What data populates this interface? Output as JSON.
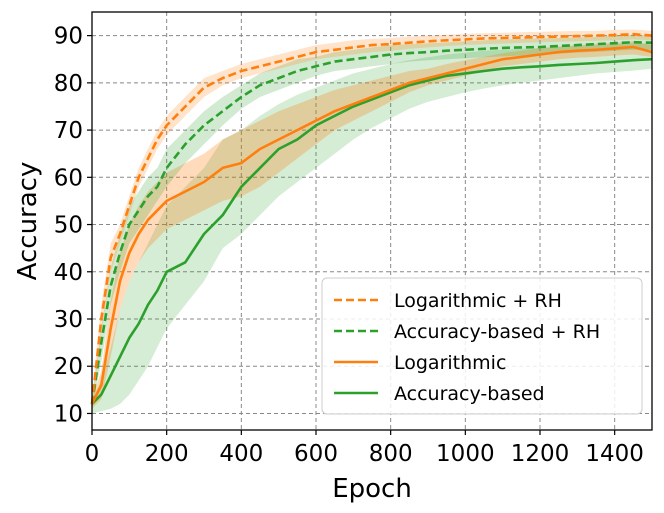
{
  "chart_data": {
    "type": "line",
    "title": "",
    "xlabel": "Epoch",
    "ylabel": "Accuracy",
    "xlim": [
      0,
      1500
    ],
    "ylim": [
      6.5,
      95
    ],
    "xticks": [
      0,
      200,
      400,
      600,
      800,
      1000,
      1200,
      1400
    ],
    "yticks": [
      10,
      20,
      30,
      40,
      50,
      60,
      70,
      80,
      90
    ],
    "grid": true,
    "grid_style": "dashed",
    "legend_position": "lower-right",
    "series": [
      {
        "name": "Logarithmic + RH",
        "color": "#ff7f0e",
        "linestyle": "dashed",
        "x": [
          0,
          25,
          50,
          75,
          100,
          125,
          150,
          175,
          200,
          250,
          300,
          350,
          400,
          450,
          500,
          550,
          600,
          650,
          700,
          750,
          800,
          850,
          900,
          950,
          1000,
          1050,
          1100,
          1150,
          1200,
          1250,
          1300,
          1350,
          1400,
          1450,
          1500
        ],
        "y": [
          12,
          30,
          43,
          48,
          54,
          60,
          64,
          68,
          71,
          75,
          79,
          81,
          82.5,
          83.5,
          84.5,
          85.5,
          86.5,
          87,
          87.5,
          88,
          88.2,
          88.5,
          88.8,
          89,
          89.2,
          89.4,
          89.5,
          89.6,
          89.7,
          89.8,
          89.9,
          90,
          90.1,
          90.3,
          90
        ],
        "band_lower": [
          11,
          27,
          40,
          46,
          52,
          58,
          62,
          66,
          69,
          73,
          77,
          79.5,
          81,
          82,
          83,
          84,
          85,
          85.5,
          86,
          86.5,
          86.8,
          87.2,
          87.5,
          87.8,
          88,
          88.2,
          88.3,
          88.5,
          88.6,
          88.7,
          88.8,
          88.9,
          89,
          89.2,
          89
        ],
        "band_upper": [
          13,
          33,
          46,
          50,
          56,
          62,
          66,
          70,
          73,
          77,
          81,
          82.5,
          84,
          85,
          86,
          87,
          88,
          88.5,
          89,
          89.3,
          89.5,
          89.8,
          90,
          90.2,
          90.4,
          90.5,
          90.6,
          90.7,
          90.8,
          90.9,
          91,
          91,
          91.2,
          91.3,
          91
        ]
      },
      {
        "name": "Accuracy-based + RH",
        "color": "#2ca02c",
        "linestyle": "dashed",
        "x": [
          0,
          25,
          50,
          75,
          100,
          125,
          150,
          175,
          200,
          250,
          300,
          350,
          400,
          450,
          500,
          550,
          600,
          650,
          700,
          750,
          800,
          850,
          900,
          950,
          1000,
          1050,
          1100,
          1150,
          1200,
          1250,
          1300,
          1350,
          1400,
          1450,
          1500
        ],
        "y": [
          12,
          25,
          37,
          44,
          50,
          53,
          56,
          58,
          62,
          67,
          71,
          74,
          77,
          79.5,
          81,
          82.5,
          83.5,
          84.5,
          85,
          85.5,
          86,
          86.3,
          86.5,
          86.8,
          87,
          87.2,
          87.4,
          87.5,
          87.6,
          87.8,
          88,
          88.2,
          88.4,
          88.6,
          88.5
        ],
        "band_lower": [
          11,
          21,
          33,
          40,
          46,
          49,
          52,
          55,
          58,
          63,
          67,
          71,
          74.5,
          77,
          78.5,
          80,
          81.5,
          82.5,
          83,
          83.5,
          84,
          84.5,
          84.8,
          85,
          85.2,
          85.4,
          85.6,
          85.8,
          86,
          86.2,
          86.4,
          86.6,
          86.8,
          87,
          87
        ],
        "band_upper": [
          13,
          28,
          41,
          48,
          54,
          57,
          60,
          62,
          66,
          70,
          74,
          77,
          79.5,
          82,
          83.5,
          85,
          85.5,
          86.5,
          87,
          87.5,
          88,
          88.2,
          88.4,
          88.6,
          88.8,
          89,
          89.2,
          89.3,
          89.4,
          89.5,
          89.6,
          89.8,
          90,
          90.2,
          90
        ]
      },
      {
        "name": "Logarithmic",
        "color": "#ff7f0e",
        "linestyle": "solid",
        "x": [
          0,
          25,
          50,
          75,
          100,
          125,
          150,
          175,
          200,
          250,
          300,
          350,
          400,
          450,
          500,
          550,
          600,
          650,
          700,
          750,
          800,
          850,
          900,
          950,
          1000,
          1050,
          1100,
          1150,
          1200,
          1250,
          1300,
          1350,
          1400,
          1450,
          1500
        ],
        "y": [
          12,
          16,
          28,
          38,
          44,
          48,
          51,
          53,
          55,
          57,
          59,
          62,
          63,
          66,
          68,
          70,
          72,
          74,
          75.5,
          77,
          78.5,
          80,
          81,
          82,
          83,
          84,
          85,
          85.5,
          86,
          86.5,
          86.8,
          87,
          87.3,
          87.6,
          86.5
        ],
        "band_lower": [
          11,
          13,
          22,
          32,
          38,
          42,
          45,
          47,
          49,
          51,
          53,
          55,
          56,
          58,
          61,
          64,
          67,
          70,
          72,
          74,
          76,
          78,
          79.5,
          80.5,
          81.5,
          82.5,
          83.5,
          84,
          84.5,
          85,
          85.3,
          85.5,
          85.8,
          86,
          85.5
        ],
        "band_upper": [
          13,
          19,
          34,
          44,
          50,
          54,
          57,
          59,
          61,
          63,
          65,
          68,
          70,
          72,
          74,
          75.5,
          77,
          78.5,
          79.5,
          80.5,
          81.5,
          82.5,
          83,
          84,
          84.8,
          85.5,
          86.3,
          86.8,
          87.3,
          87.7,
          88,
          88.3,
          88.5,
          88.8,
          88
        ]
      },
      {
        "name": "Accuracy-based",
        "color": "#2ca02c",
        "linestyle": "solid",
        "x": [
          0,
          25,
          50,
          75,
          100,
          125,
          150,
          175,
          200,
          250,
          300,
          350,
          400,
          450,
          500,
          550,
          600,
          650,
          700,
          750,
          800,
          850,
          900,
          950,
          1000,
          1050,
          1100,
          1150,
          1200,
          1250,
          1300,
          1350,
          1400,
          1450,
          1500
        ],
        "y": [
          12,
          14,
          18,
          22,
          26,
          29,
          33,
          36,
          40,
          42,
          48,
          52,
          58,
          62,
          66,
          68,
          71,
          73,
          75,
          76.5,
          78,
          79.5,
          80.5,
          81.5,
          82,
          82.5,
          83,
          83.3,
          83.5,
          83.8,
          84,
          84.2,
          84.5,
          84.8,
          85
        ],
        "band_lower": [
          10,
          10.5,
          11,
          12,
          14,
          17,
          20,
          24,
          28,
          33,
          38,
          45,
          48,
          52,
          56,
          59,
          62,
          65,
          68,
          70.5,
          72.5,
          74.5,
          76,
          77,
          78,
          78.8,
          79.5,
          80,
          80.5,
          81,
          81.5,
          82,
          82.3,
          82.6,
          83
        ],
        "band_upper": [
          13,
          17,
          24,
          32,
          38,
          42,
          46,
          50,
          54,
          58,
          62,
          68,
          70,
          73,
          75.5,
          77.5,
          79,
          80.5,
          82,
          83,
          84,
          84.8,
          85.4,
          86,
          86.4,
          86.8,
          87,
          87.2,
          87.4,
          87.6,
          87.8,
          88,
          88.2,
          88.4,
          88.2
        ]
      }
    ]
  }
}
